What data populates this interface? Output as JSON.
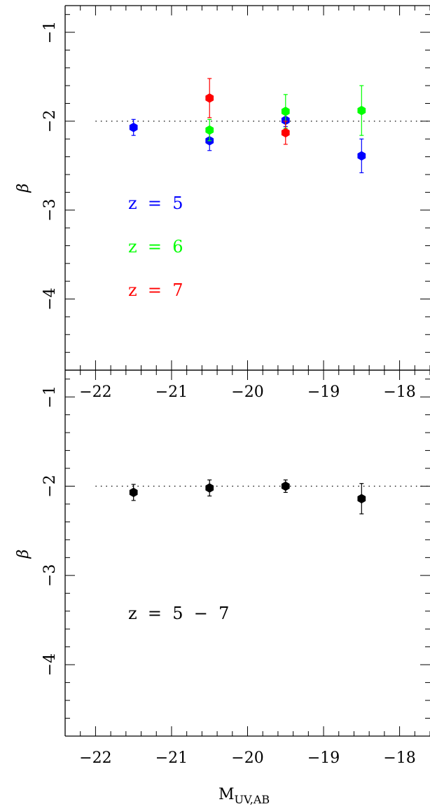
{
  "chart_data": [
    {
      "panel": "top",
      "type": "scatter",
      "xlim": [
        -22.4,
        -17.6
      ],
      "ylim": [
        -4.8,
        -0.7
      ],
      "ylabel": "β",
      "x_ticks": [
        -22,
        -21,
        -20,
        -19,
        -18
      ],
      "y_ticks": [
        -1,
        -2,
        -3,
        -4
      ],
      "reference_line": -2,
      "grid": false,
      "series": [
        {
          "name": "z = 5",
          "color": "#0000ff",
          "points": [
            {
              "x": -21.5,
              "y": -2.07,
              "err": 0.09
            },
            {
              "x": -20.5,
              "y": -2.22,
              "err": 0.11
            },
            {
              "x": -19.5,
              "y": -1.99,
              "err": 0.07
            },
            {
              "x": -18.5,
              "y": -2.39,
              "err": 0.19
            }
          ]
        },
        {
          "name": "z = 6",
          "color": "#00ff00",
          "points": [
            {
              "x": -20.5,
              "y": -2.1,
              "err": 0.12
            },
            {
              "x": -19.5,
              "y": -1.89,
              "err": 0.19
            },
            {
              "x": -18.5,
              "y": -1.88,
              "err": 0.28
            }
          ]
        },
        {
          "name": "z = 7",
          "color": "#ff0000",
          "points": [
            {
              "x": -20.5,
              "y": -1.74,
              "err": 0.22
            },
            {
              "x": -19.5,
              "y": -2.13,
              "err": 0.13
            }
          ]
        }
      ],
      "annotations": [
        {
          "text": "z  =  5",
          "color": "#0000ff"
        },
        {
          "text": "z  =  6",
          "color": "#00ff00"
        },
        {
          "text": "z  =  7",
          "color": "#ff0000"
        }
      ]
    },
    {
      "panel": "bottom",
      "type": "scatter",
      "xlim": [
        -22.4,
        -17.6
      ],
      "ylim": [
        -4.8,
        -0.7
      ],
      "xlabel_main": "M",
      "xlabel_sub": "UV,AB",
      "ylabel": "β",
      "x_ticks": [
        -22,
        -21,
        -20,
        -19,
        -18
      ],
      "y_ticks": [
        -1,
        -2,
        -3,
        -4
      ],
      "reference_line": -2,
      "grid": false,
      "series": [
        {
          "name": "z = 5 − 7",
          "color": "#000000",
          "points": [
            {
              "x": -21.5,
              "y": -2.07,
              "err": 0.09
            },
            {
              "x": -20.5,
              "y": -2.02,
              "err": 0.09
            },
            {
              "x": -19.5,
              "y": -2.0,
              "err": 0.07
            },
            {
              "x": -18.5,
              "y": -2.14,
              "err": 0.17
            }
          ]
        }
      ],
      "annotations": [
        {
          "text": "z  =  5  −  7",
          "color": "#000000"
        }
      ]
    }
  ]
}
